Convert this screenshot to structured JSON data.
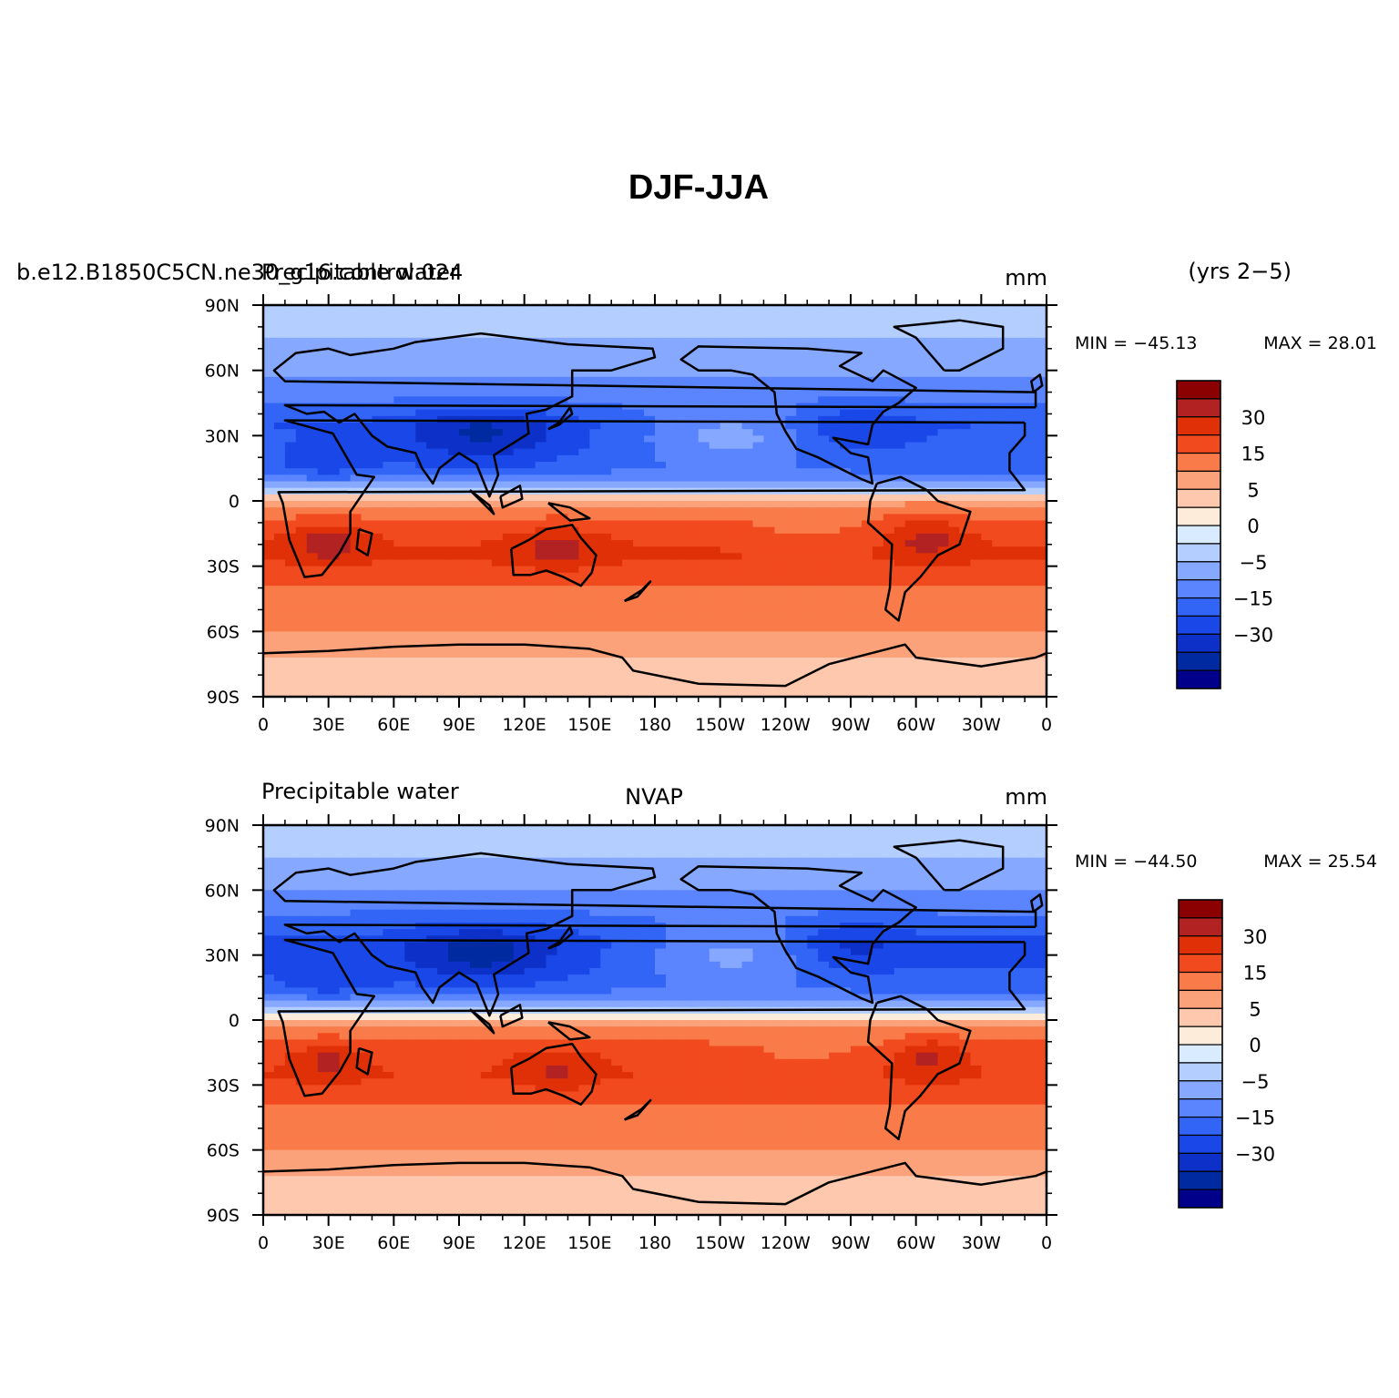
{
  "page": {
    "main_title": "DJF-JJA",
    "years": "(yrs 2−5)"
  },
  "chart_data": [
    {
      "type": "heatmap",
      "left_label": "b.e12.B1850C5CN.ne30_g16.control.024",
      "left_label_overlay": "Precipitable water",
      "center_label": "",
      "units": "mm",
      "min_label": "MIN = −45.13",
      "max_label": "MAX =  28.01",
      "min": -45.13,
      "max": 28.01,
      "xlim": [
        0,
        360
      ],
      "ylim": [
        -90,
        90
      ],
      "xticks": [
        "0",
        "30E",
        "60E",
        "90E",
        "120E",
        "150E",
        "180",
        "150W",
        "120W",
        "90W",
        "60W",
        "30W",
        "0"
      ],
      "yticks": [
        "90N",
        "60N",
        "30N",
        "0",
        "30S",
        "60S",
        "90S"
      ],
      "zonal_profile": {
        "lat": [
          88,
          75,
          60,
          45,
          35,
          25,
          15,
          8,
          3,
          0,
          -5,
          -15,
          -25,
          -35,
          -45,
          -60,
          -70,
          -80,
          -88
        ],
        "value": [
          -7,
          -10,
          -14,
          -20,
          -25,
          -24,
          -22,
          -14,
          -3,
          3,
          8,
          14,
          16,
          12,
          8,
          5,
          3,
          1,
          1
        ]
      }
    },
    {
      "type": "heatmap",
      "left_label": "Precipitable water",
      "center_label": "NVAP",
      "units": "mm",
      "min_label": "MIN = −44.50",
      "max_label": "MAX =  25.54",
      "min": -44.5,
      "max": 25.54,
      "xlim": [
        0,
        360
      ],
      "ylim": [
        -90,
        90
      ],
      "xticks": [
        "0",
        "30E",
        "60E",
        "90E",
        "120E",
        "150E",
        "180",
        "150W",
        "120W",
        "90W",
        "60W",
        "30W",
        "0"
      ],
      "yticks": [
        "90N",
        "60N",
        "30N",
        "0",
        "30S",
        "60S",
        "90S"
      ],
      "zonal_profile": {
        "lat": [
          88,
          75,
          60,
          45,
          35,
          25,
          15,
          8,
          3,
          0,
          -5,
          -15,
          -25,
          -35,
          -45,
          -60,
          -70,
          -80,
          -88
        ],
        "value": [
          -7,
          -10,
          -15,
          -22,
          -26,
          -25,
          -22,
          -14,
          -3,
          2,
          7,
          13,
          15,
          12,
          8,
          5,
          3,
          0,
          1
        ]
      }
    }
  ],
  "colorbar": {
    "levels": [
      -40,
      -35,
      -30,
      -25,
      -20,
      -15,
      -10,
      -5,
      -2.5,
      0,
      2.5,
      5,
      10,
      15,
      20,
      25,
      30,
      35
    ],
    "labels": [
      "30",
      "15",
      "5",
      "0",
      "−5",
      "−15",
      "−30"
    ],
    "colors": [
      "#8b0000",
      "#b22222",
      "#e03008",
      "#f24a1f",
      "#fa7b4a",
      "#fca27a",
      "#fdc8ad",
      "#feecdb",
      "#d8ebff",
      "#b3ceff",
      "#86a9ff",
      "#5a85ff",
      "#3264f5",
      "#1a48e8",
      "#0d31c8",
      "#002ba0",
      "#00008b"
    ]
  }
}
